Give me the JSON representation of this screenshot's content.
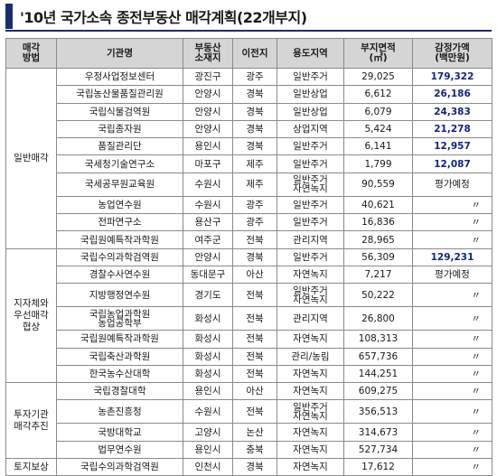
{
  "title": "'10년 국가소속 종전부동산 매각계획(22개부지)",
  "headers": {
    "method": "매각\n방법",
    "org": "기관명",
    "location": "부동산\n소재지",
    "destination": "이전지",
    "zone": "용도지역",
    "area": "부지면적\n(㎡)",
    "value": "감정가액\n(백만원)"
  },
  "groups": [
    {
      "method": "일반매각",
      "rows": [
        {
          "org": "우정사업정보센터",
          "location": "광진구",
          "destination": "광주",
          "zone": "일반주거",
          "area": "29,025",
          "value": "179,322"
        },
        {
          "org": "국립농산물품질관리원",
          "location": "안양시",
          "destination": "경북",
          "zone": "일반상업",
          "area": "6,612",
          "value": "26,186"
        },
        {
          "org": "국립식물검역원",
          "location": "안양시",
          "destination": "경북",
          "zone": "일반상업",
          "area": "6,079",
          "value": "24,383"
        },
        {
          "org": "국립종자원",
          "location": "안양시",
          "destination": "경북",
          "zone": "상업지역",
          "area": "5,424",
          "value": "21,278"
        },
        {
          "org": "품질관리단",
          "location": "용인시",
          "destination": "경북",
          "zone": "일반주거",
          "area": "6,141",
          "value": "12,957"
        },
        {
          "org": "국세청기술연구소",
          "location": "마포구",
          "destination": "제주",
          "zone": "일반주거",
          "area": "1,799",
          "value": "12,087"
        },
        {
          "org": "국세공무원교육원",
          "location": "수원시",
          "destination": "제주",
          "zone": "일반주거\n자연녹지",
          "area": "90,559",
          "value": "평가예정"
        },
        {
          "org": "농업연수원",
          "location": "수원시",
          "destination": "광주",
          "zone": "일반주거",
          "area": "40,621",
          "value": "〃"
        },
        {
          "org": "전파연구소",
          "location": "용산구",
          "destination": "광주",
          "zone": "일반주거",
          "area": "16,836",
          "value": "〃"
        },
        {
          "org": "국립원예특작과학원",
          "location": "여주군",
          "destination": "전북",
          "zone": "관리지역",
          "area": "28,965",
          "value": "〃"
        }
      ]
    },
    {
      "method": "지자체와\n우선매각\n협상",
      "rows": [
        {
          "org": "국립수의과학검역원",
          "location": "안양시",
          "destination": "경북",
          "zone": "일반주거",
          "area": "56,309",
          "value": "129,231"
        },
        {
          "org": "경찰수사연수원",
          "location": "동대문구",
          "destination": "아산",
          "zone": "자연녹지",
          "area": "7,217",
          "value": "평가예정"
        },
        {
          "org": "지방행정연수원",
          "location": "경기도",
          "destination": "전북",
          "zone": "일반주거\n자연녹지",
          "area": "50,222",
          "value": "〃"
        },
        {
          "org": "국립농업과학원\n농업공학부",
          "location": "화성시",
          "destination": "전북",
          "zone": "관리지역",
          "area": "26,800",
          "value": "〃"
        },
        {
          "org": "국립원예특작과학원",
          "location": "화성시",
          "destination": "전북",
          "zone": "자연녹지",
          "area": "108,313",
          "value": "〃"
        },
        {
          "org": "국립축산과학원",
          "location": "화성시",
          "destination": "전북",
          "zone": "관리/농림",
          "area": "657,736",
          "value": "〃"
        },
        {
          "org": "한국농수산대학",
          "location": "화성시",
          "destination": "전북",
          "zone": "자연녹지",
          "area": "144,251",
          "value": "〃"
        }
      ]
    },
    {
      "method": "투자기관\n매각추진",
      "rows": [
        {
          "org": "국립경찰대학",
          "location": "용인시",
          "destination": "아산",
          "zone": "자연녹지",
          "area": "609,275",
          "value": "〃"
        },
        {
          "org": "농촌진흥청",
          "location": "수원시",
          "destination": "전북",
          "zone": "일반주거\n자연녹지",
          "area": "356,513",
          "value": "〃"
        },
        {
          "org": "국방대학교",
          "location": "고양시",
          "destination": "논산",
          "zone": "자연녹지",
          "area": "314,673",
          "value": "〃"
        },
        {
          "org": "법무연수원",
          "location": "용인시",
          "destination": "충북",
          "zone": "자연녹지",
          "area": "527,734",
          "value": "〃"
        }
      ]
    },
    {
      "method": "토지보상",
      "rows": [
        {
          "org": "국립수의과학검역원",
          "location": "인천시",
          "destination": "경북",
          "zone": "자연녹지",
          "area": "17,612",
          "value": "〃"
        }
      ]
    }
  ],
  "colors": {
    "accent": "#1c2d6b",
    "header_bg": "#d5d5d5",
    "value_text": "#10248a"
  }
}
